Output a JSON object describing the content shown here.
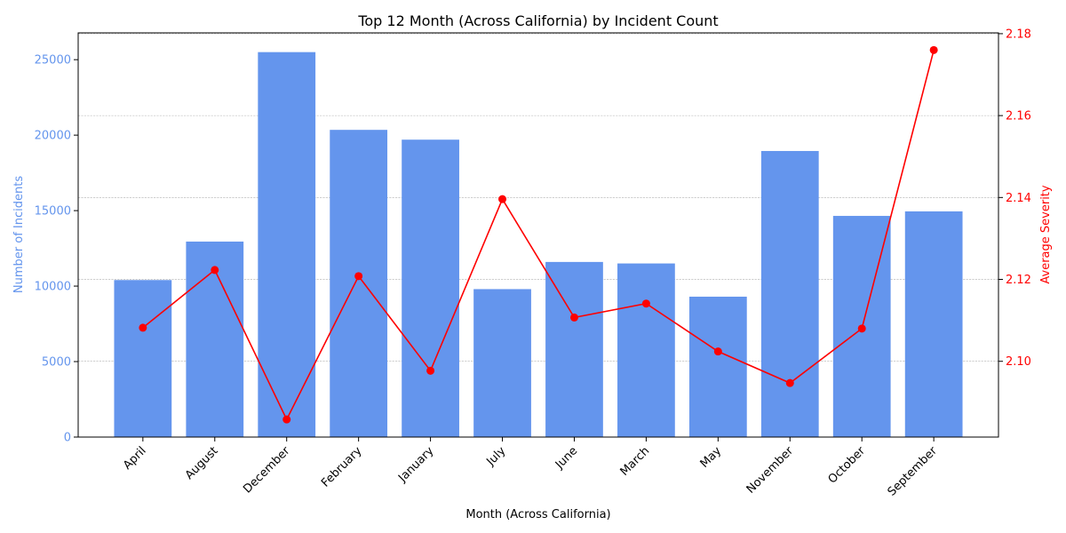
{
  "chart_data": {
    "type": "bar+line",
    "title": "Top 12 Month (Across California) by Incident Count",
    "xlabel": "Month (Across California)",
    "ylabel_left": "Number of Incidents",
    "ylabel_right": "Average Severity",
    "categories": [
      "April",
      "August",
      "December",
      "February",
      "January",
      "July",
      "June",
      "March",
      "May",
      "November",
      "October",
      "September"
    ],
    "series": [
      {
        "axis": "left",
        "kind": "bar",
        "color": "#6495ED",
        "values": [
          10400,
          12950,
          25500,
          20350,
          19700,
          9800,
          11600,
          11500,
          9300,
          18950,
          14650,
          14950
        ]
      },
      {
        "axis": "right",
        "kind": "line",
        "color": "#FF0000",
        "values": [
          2.1082,
          2.1223,
          2.0858,
          2.1208,
          2.0977,
          2.1396,
          2.1107,
          2.1141,
          2.1024,
          2.0947,
          2.108,
          2.176
        ]
      }
    ],
    "ylim_left": [
      0,
      26775
    ],
    "ylim_right": [
      2.0815,
      2.1802
    ],
    "yticks_left": [
      0,
      5000,
      10000,
      15000,
      20000,
      25000
    ],
    "yticks_right": [
      2.1,
      2.12,
      2.14,
      2.16,
      2.18
    ],
    "ytick_labels_right": [
      "2.10",
      "2.12",
      "2.14",
      "2.16",
      "2.18"
    ],
    "grid": "horizontal-dashed",
    "legend": "none"
  }
}
